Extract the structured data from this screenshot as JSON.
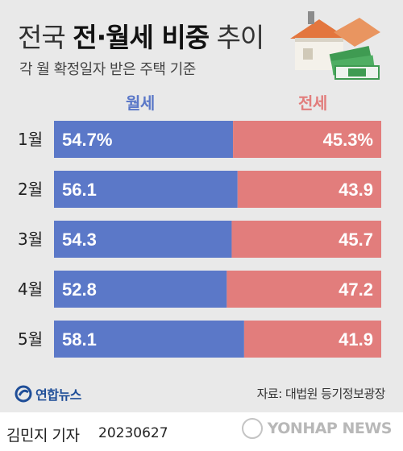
{
  "title": {
    "light_left": "전국",
    "bold": "전·월세 비중",
    "light_right": "추이"
  },
  "subtitle": "각 월 확정일자 받은 주택 기준",
  "colors": {
    "monthly": "#5b78c8",
    "jeonse": "#e27d7c",
    "background": "#e9e9e9"
  },
  "chart_data": {
    "type": "bar",
    "stacked": true,
    "orientation": "horizontal",
    "categories": [
      "1월",
      "2월",
      "3월",
      "4월",
      "5월"
    ],
    "series": [
      {
        "name": "월세",
        "values": [
          54.7,
          56.1,
          54.3,
          52.8,
          58.1
        ],
        "labels": [
          "54.7%",
          "56.1",
          "54.3",
          "52.8",
          "58.1"
        ]
      },
      {
        "name": "전세",
        "values": [
          45.3,
          43.9,
          45.7,
          47.2,
          41.9
        ],
        "labels": [
          "45.3%",
          "43.9",
          "45.7",
          "47.2",
          "41.9"
        ]
      }
    ],
    "xlim": [
      0,
      100
    ],
    "legend": "top"
  },
  "source": "자료: 대법원 등기정보광장",
  "logo": {
    "text": "연합뉴스",
    "icon": "yonhap-logo-icon"
  },
  "credit": {
    "name": "김민지 기자",
    "date": "20230627"
  },
  "watermark": "YONHAP NEWS"
}
